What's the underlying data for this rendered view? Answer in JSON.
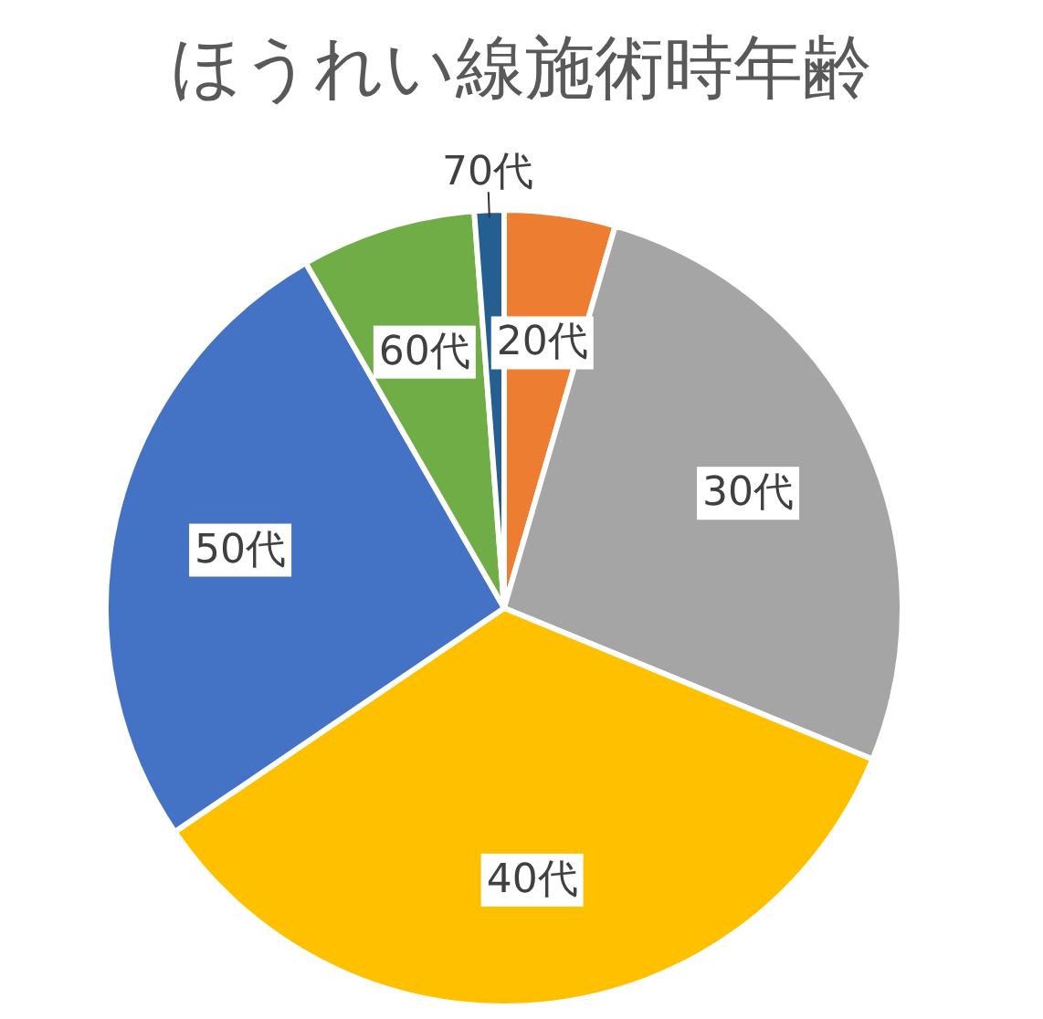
{
  "chart_data": {
    "type": "pie",
    "title": "ほうれい線施術時年齢",
    "categories": [
      "20代",
      "30代",
      "40代",
      "50代",
      "60代",
      "70代"
    ],
    "values": [
      4.5,
      26.7,
      34.3,
      26.2,
      7.1,
      1.2
    ],
    "colors": [
      "#ed7d31",
      "#a5a5a5",
      "#ffc000",
      "#4472c4",
      "#70ad47",
      "#255e91"
    ],
    "legend": false
  }
}
